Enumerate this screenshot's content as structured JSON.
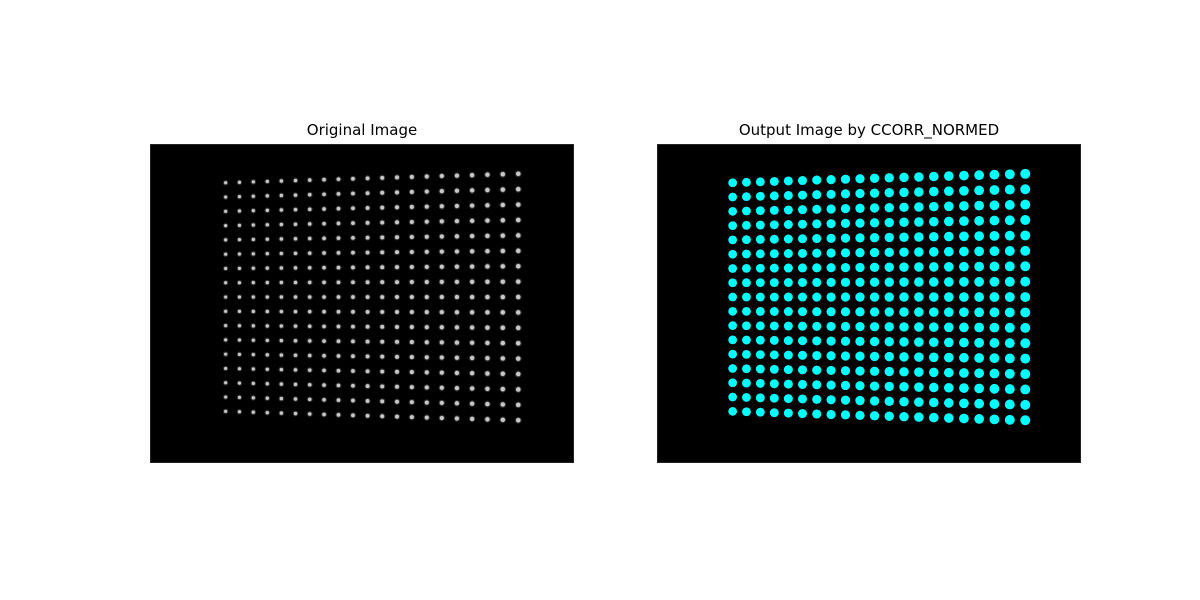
{
  "figure": {
    "left_panel": {
      "title": "Original Image"
    },
    "right_panel": {
      "title": "Output Image by CCORR_NORMED"
    }
  },
  "grid": {
    "columns": 21,
    "rows": 17
  },
  "colors": {
    "background": "#000000",
    "original_dot": "#c8c8c8",
    "detected_dot": "#00ffff"
  }
}
